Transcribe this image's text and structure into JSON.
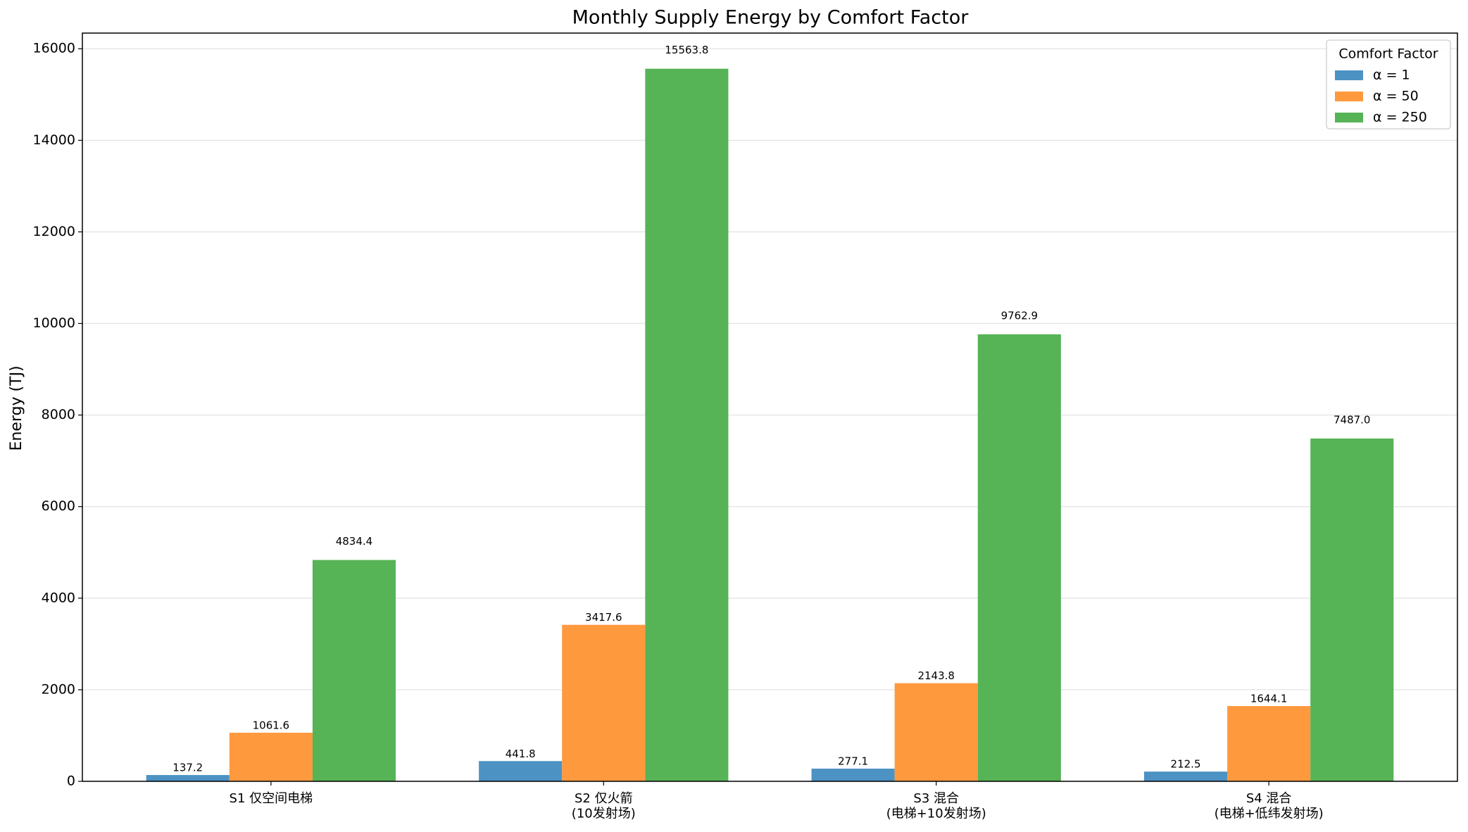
{
  "chart_data": {
    "type": "bar",
    "title": "Monthly Supply Energy by Comfort Factor",
    "y_label": "Energy (TJ)",
    "categories": [
      "S1 仅空间电梯",
      "S2 仅火箭\n(10发射场)",
      "S3 混合\n(电梯+10发射场)",
      "S4 混合\n(电梯+低纬发射场)"
    ],
    "legend_title": "Comfort Factor",
    "legend_position": "upper right",
    "series": [
      {
        "name": "α = 1",
        "color": "#4c92c3",
        "values": [
          137.2,
          441.8,
          277.1,
          212.5
        ],
        "value_labels": [
          "137.2",
          "441.8",
          "277.1",
          "212.5"
        ]
      },
      {
        "name": "α = 50",
        "color": "#ff993e",
        "values": [
          1061.6,
          3417.6,
          2143.8,
          1644.1
        ],
        "value_labels": [
          "1061.6",
          "3417.6",
          "2143.8",
          "1644.1"
        ]
      },
      {
        "name": "α = 250",
        "color": "#56b356",
        "values": [
          4834.4,
          15563.8,
          9762.9,
          7487.0
        ],
        "value_labels": [
          "4834.4",
          "15563.8",
          "9762.9",
          "7487.0"
        ]
      }
    ],
    "ylim": [
      0,
      16342
    ],
    "yticks": [
      0,
      2000,
      4000,
      6000,
      8000,
      10000,
      12000,
      14000,
      16000
    ],
    "grid": true
  }
}
